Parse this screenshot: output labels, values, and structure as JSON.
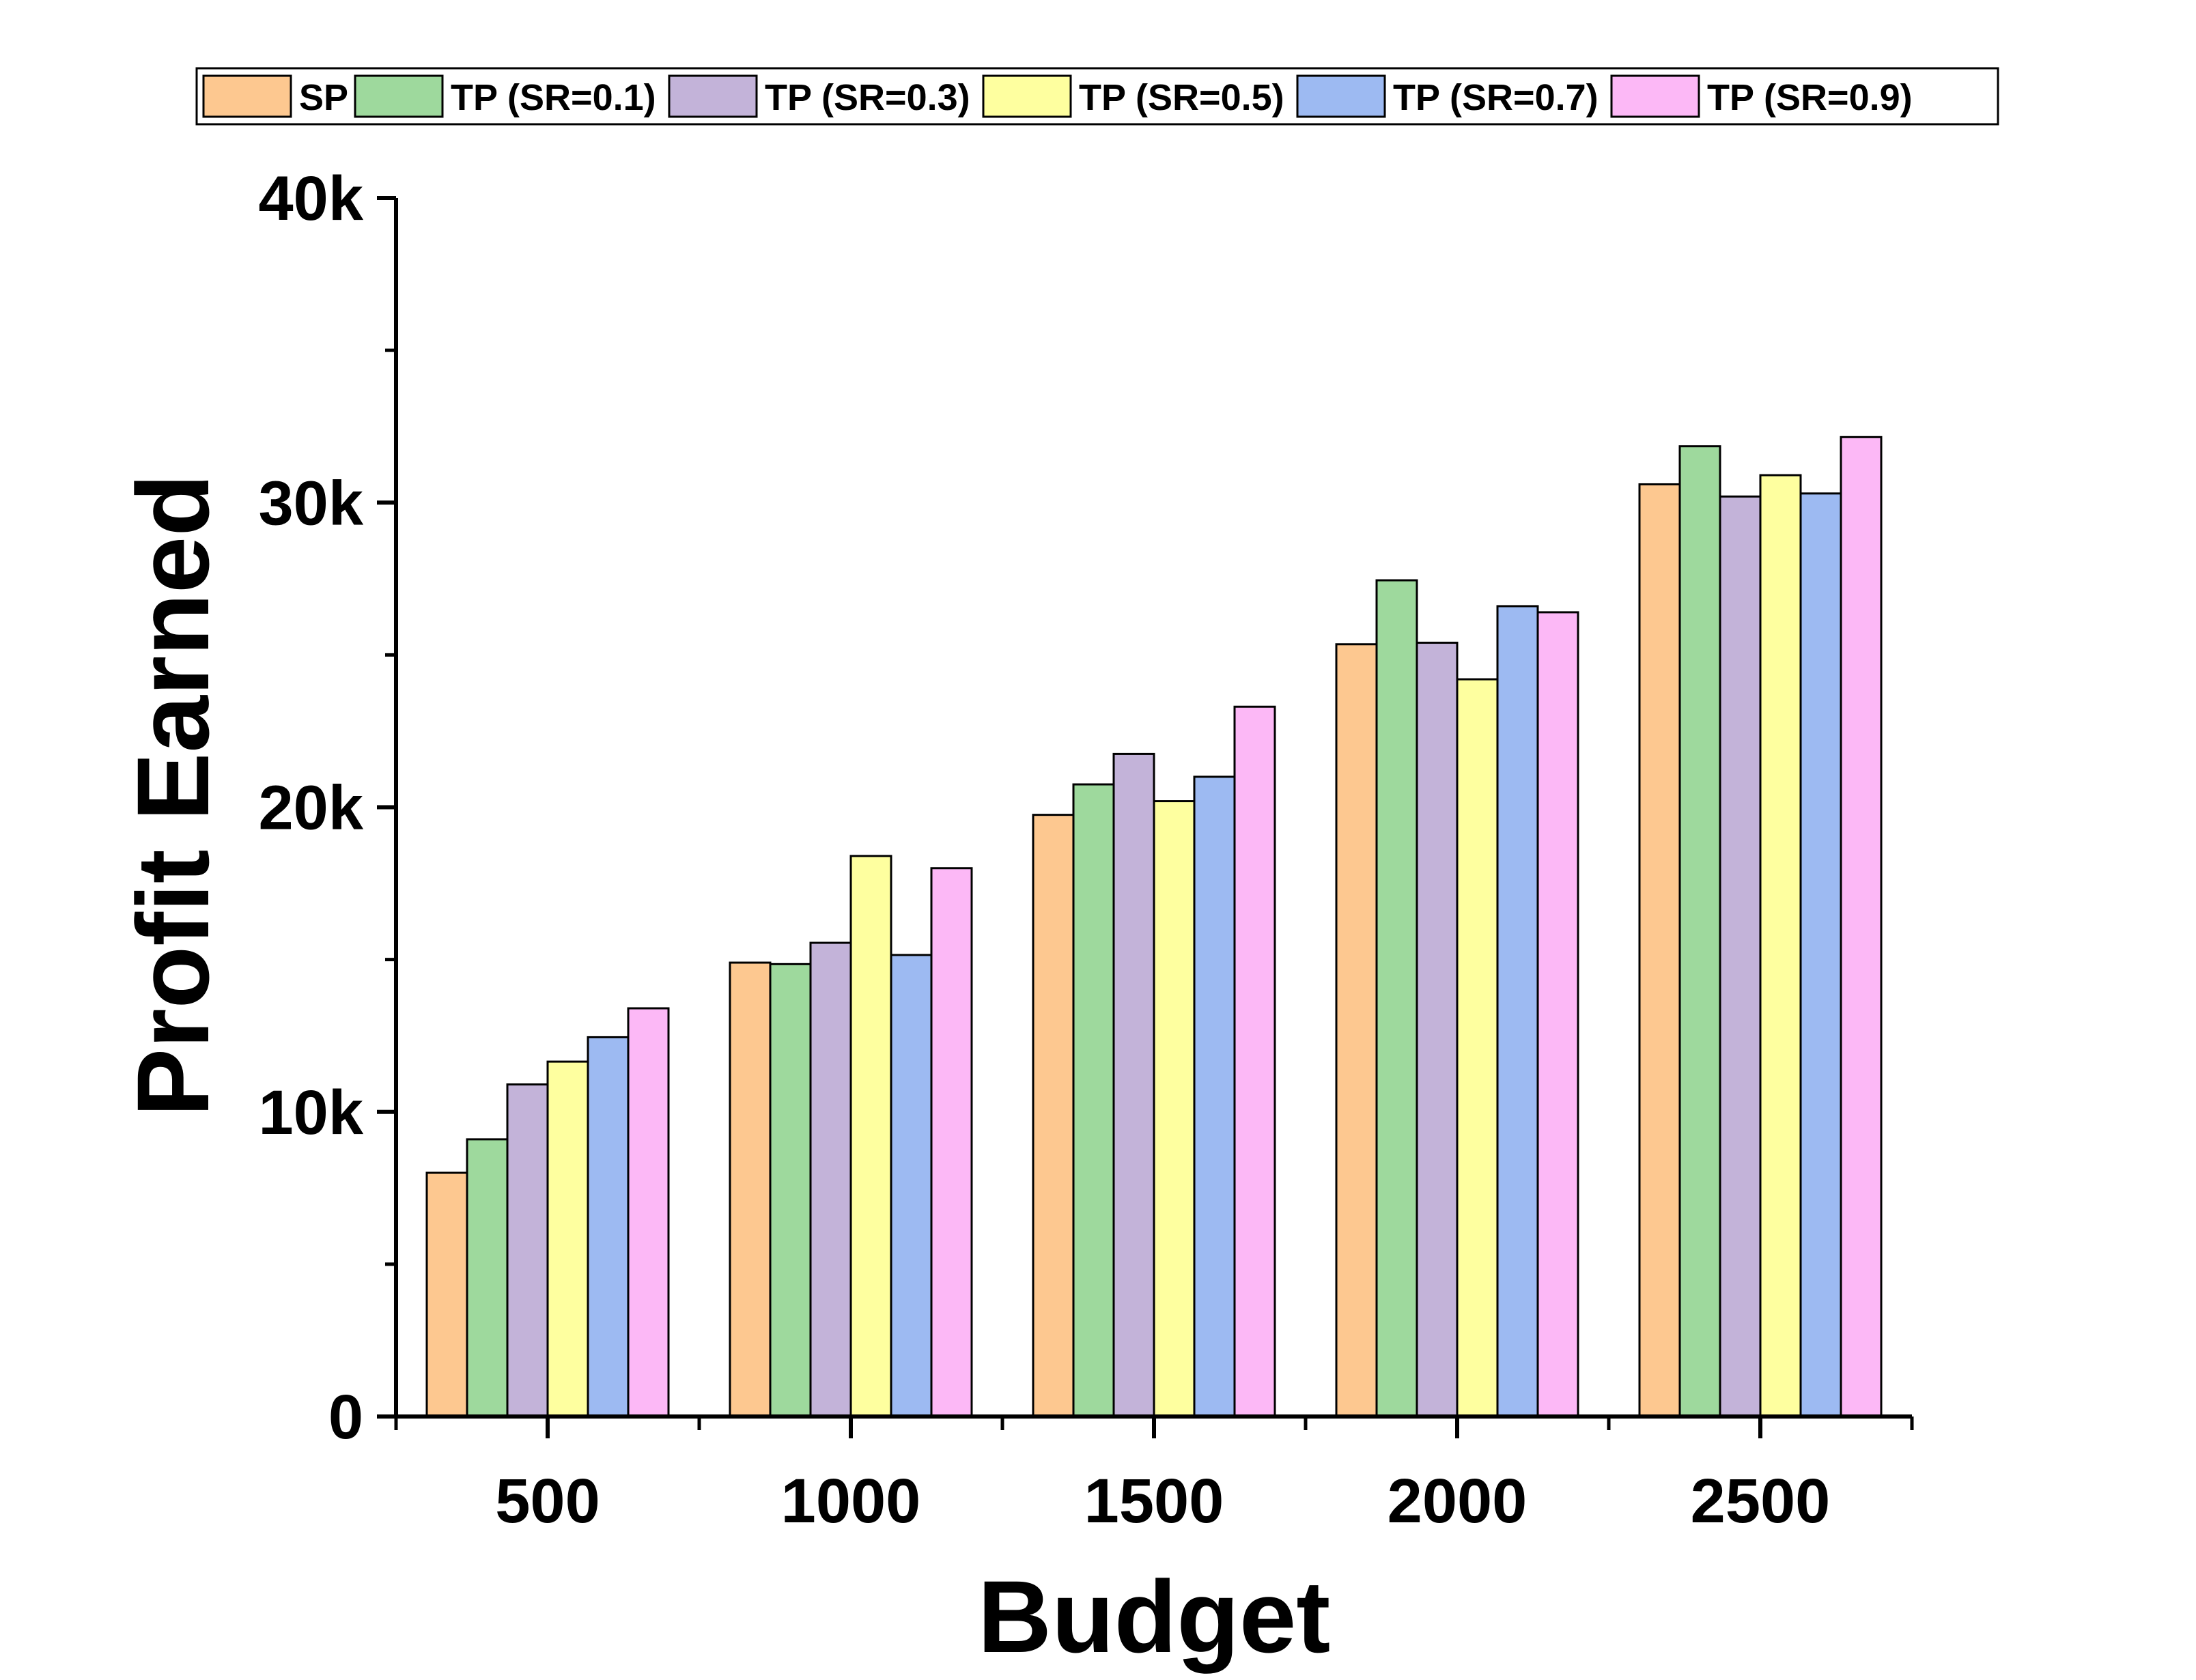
{
  "chart_data": {
    "type": "bar",
    "title": "",
    "xlabel": "Budget",
    "ylabel": "Profit Earned",
    "categories": [
      "500",
      "1000",
      "1500",
      "2000",
      "2500"
    ],
    "ylim": [
      0,
      40000
    ],
    "yticks": [
      0,
      10000,
      20000,
      30000,
      40000
    ],
    "ytick_labels": [
      "0",
      "10k",
      "20k",
      "30k",
      "40k"
    ],
    "grid": false,
    "legend_position": "top",
    "series": [
      {
        "name": "SP",
        "color": "#FDC890",
        "values": [
          8000,
          14900,
          19750,
          25350,
          30600
        ]
      },
      {
        "name": "TP (SR=0.1)",
        "color": "#9ED99D",
        "values": [
          9100,
          14850,
          20750,
          27450,
          31850
        ]
      },
      {
        "name": "TP (SR=0.3)",
        "color": "#C3B3D9",
        "values": [
          10900,
          15550,
          21750,
          25400,
          30200
        ]
      },
      {
        "name": "TP (SR=0.5)",
        "color": "#FEFF9F",
        "values": [
          11650,
          18400,
          20200,
          24200,
          30900
        ]
      },
      {
        "name": "TP (SR=0.7)",
        "color": "#9DBAF2",
        "values": [
          12450,
          15150,
          21000,
          26600,
          30300
        ]
      },
      {
        "name": "TP (SR=0.9)",
        "color": "#FCB8F6",
        "values": [
          13400,
          18000,
          23300,
          26400,
          32150
        ]
      }
    ]
  }
}
